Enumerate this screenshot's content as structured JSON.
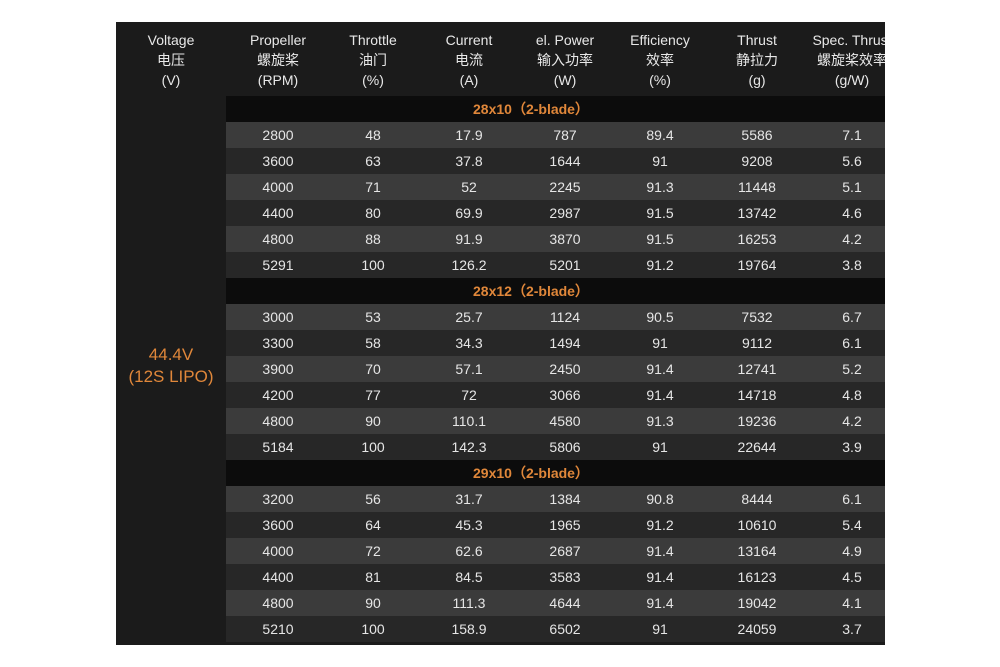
{
  "columns": [
    {
      "en": "Voltage",
      "cn": "电压",
      "unit": "(V)"
    },
    {
      "en": "Propeller",
      "cn": "螺旋桨",
      "unit": "(RPM)"
    },
    {
      "en": "Throttle",
      "cn": "油门",
      "unit": "(%)"
    },
    {
      "en": "Current",
      "cn": "电流",
      "unit": "(A)"
    },
    {
      "en": "el. Power",
      "cn": "输入功率",
      "unit": "(W)"
    },
    {
      "en": "Efficiency",
      "cn": "效率",
      "unit": "(%)"
    },
    {
      "en": "Thrust",
      "cn": "静拉力",
      "unit": "(g)"
    },
    {
      "en": "Spec. Thrust",
      "cn": "螺旋桨效率",
      "unit": "(g/W)"
    }
  ],
  "voltage": {
    "value": "44.4V",
    "battery": "(12S LIPO)"
  },
  "accent_color": "#e0873a",
  "groups": [
    {
      "title": "28x10（2-blade）",
      "rows": [
        [
          "2800",
          "48",
          "17.9",
          "787",
          "89.4",
          "5586",
          "7.1"
        ],
        [
          "3600",
          "63",
          "37.8",
          "1644",
          "91",
          "9208",
          "5.6"
        ],
        [
          "4000",
          "71",
          "52",
          "2245",
          "91.3",
          "11448",
          "5.1"
        ],
        [
          "4400",
          "80",
          "69.9",
          "2987",
          "91.5",
          "13742",
          "4.6"
        ],
        [
          "4800",
          "88",
          "91.9",
          "3870",
          "91.5",
          "16253",
          "4.2"
        ],
        [
          "5291",
          "100",
          "126.2",
          "5201",
          "91.2",
          "19764",
          "3.8"
        ]
      ]
    },
    {
      "title": "28x12（2-blade）",
      "rows": [
        [
          "3000",
          "53",
          "25.7",
          "1124",
          "90.5",
          "7532",
          "6.7"
        ],
        [
          "3300",
          "58",
          "34.3",
          "1494",
          "91",
          "9112",
          "6.1"
        ],
        [
          "3900",
          "70",
          "57.1",
          "2450",
          "91.4",
          "12741",
          "5.2"
        ],
        [
          "4200",
          "77",
          "72",
          "3066",
          "91.4",
          "14718",
          "4.8"
        ],
        [
          "4800",
          "90",
          "110.1",
          "4580",
          "91.3",
          "19236",
          "4.2"
        ],
        [
          "5184",
          "100",
          "142.3",
          "5806",
          "91",
          "22644",
          "3.9"
        ]
      ]
    },
    {
      "title": "29x10（2-blade）",
      "rows": [
        [
          "3200",
          "56",
          "31.7",
          "1384",
          "90.8",
          "8444",
          "6.1"
        ],
        [
          "3600",
          "64",
          "45.3",
          "1965",
          "91.2",
          "10610",
          "5.4"
        ],
        [
          "4000",
          "72",
          "62.6",
          "2687",
          "91.4",
          "13164",
          "4.9"
        ],
        [
          "4400",
          "81",
          "84.5",
          "3583",
          "91.4",
          "16123",
          "4.5"
        ],
        [
          "4800",
          "90",
          "111.3",
          "4644",
          "91.4",
          "19042",
          "4.1"
        ],
        [
          "5210",
          "100",
          "158.9",
          "6502",
          "91",
          "24059",
          "3.7"
        ]
      ]
    }
  ]
}
